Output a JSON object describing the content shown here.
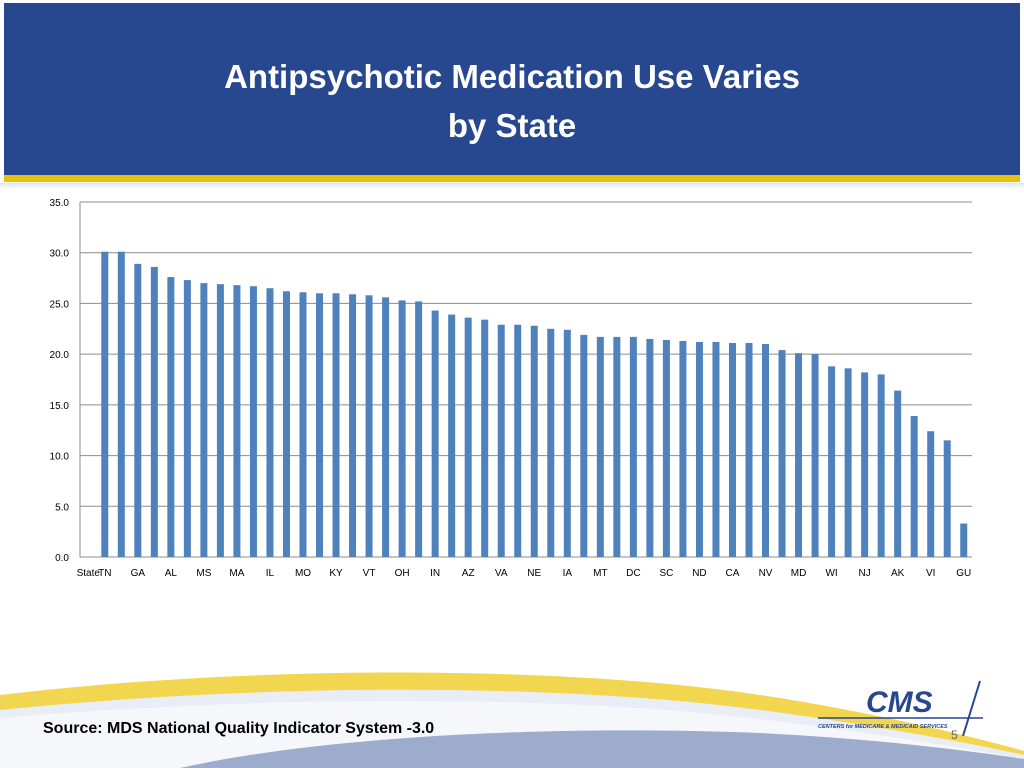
{
  "slide": {
    "title_line1": "Antipsychotic Medication Use Varies",
    "title_line2": "by State",
    "source": "Source: MDS National Quality Indicator System -3.0",
    "page_number": "5",
    "logo_text": "CMS",
    "logo_subtext": "CENTERS for MEDICARE & MEDICAID SERVICES"
  },
  "colors": {
    "header": "#27478f",
    "stripe": "#e9c20f",
    "bar": "#4f81bd"
  },
  "chart_data": {
    "type": "bar",
    "title": "",
    "xlabel": "",
    "ylabel": "",
    "ylim": [
      0,
      35
    ],
    "yticks": [
      "0.0",
      "5.0",
      "10.0",
      "15.0",
      "20.0",
      "25.0",
      "30.0",
      "35.0"
    ],
    "grid": true,
    "categories": [
      "State",
      "TN",
      "",
      "GA",
      "",
      "AL",
      "",
      "MS",
      "",
      "MA",
      "",
      "IL",
      "",
      "MO",
      "",
      "KY",
      "",
      "VT",
      "",
      "OH",
      "",
      "IN",
      "",
      "AZ",
      "",
      "VA",
      "",
      "NE",
      "",
      "IA",
      "",
      "MT",
      "",
      "DC",
      "",
      "SC",
      "",
      "ND",
      "",
      "CA",
      "",
      "NV",
      "",
      "MD",
      "",
      "WI",
      "",
      "NJ",
      "",
      "AK",
      "",
      "VI",
      "",
      "GU"
    ],
    "values": [
      null,
      30.1,
      30.1,
      28.9,
      28.6,
      27.6,
      27.3,
      27.0,
      26.9,
      26.8,
      26.7,
      26.5,
      26.2,
      26.1,
      26.0,
      26.0,
      25.9,
      25.8,
      25.6,
      25.3,
      25.2,
      24.3,
      23.9,
      23.6,
      23.4,
      22.9,
      22.9,
      22.8,
      22.5,
      22.4,
      21.9,
      21.7,
      21.7,
      21.7,
      21.5,
      21.4,
      21.3,
      21.2,
      21.2,
      21.1,
      21.1,
      21.0,
      20.4,
      20.1,
      20.0,
      18.8,
      18.6,
      18.2,
      18.0,
      16.4,
      13.9,
      12.4,
      11.5,
      3.3
    ]
  }
}
